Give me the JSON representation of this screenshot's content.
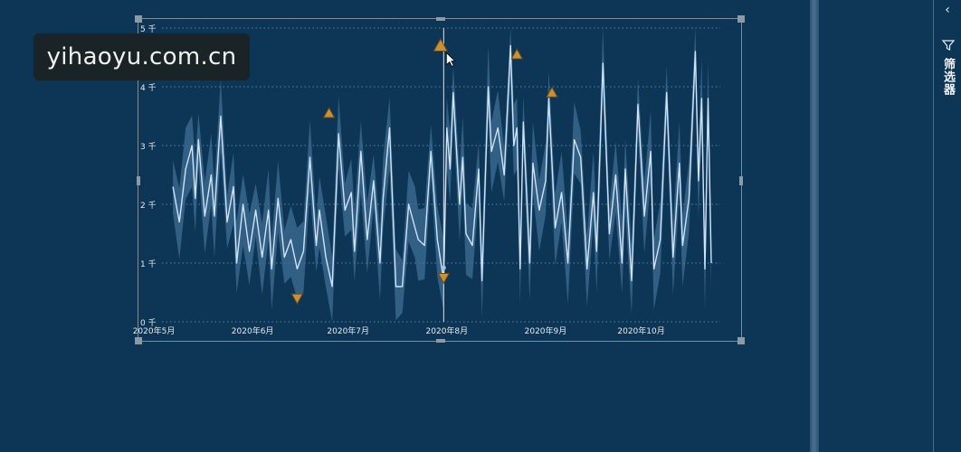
{
  "watermark": {
    "text": "yihaoyu.com.cn"
  },
  "filter_pane": {
    "label": "筛选器",
    "collapse_icon": "chevron-left-icon",
    "filter_icon": "funnel-icon"
  },
  "colors": {
    "background": "#0d3656",
    "line": "#cfe3f7",
    "band": "#3f6e94",
    "anomaly": "#c99035",
    "grid": "#5e7f9c",
    "axis_text": "#e3ebf2"
  },
  "chart_data": {
    "type": "line",
    "title": "",
    "xlabel": "",
    "ylabel": "",
    "ylim": [
      0,
      5000
    ],
    "y_ticks": [
      {
        "value": 0,
        "label": "0 千"
      },
      {
        "value": 1000,
        "label": "1 千"
      },
      {
        "value": 2000,
        "label": "2 千"
      },
      {
        "value": 3000,
        "label": "3 千"
      },
      {
        "value": 4000,
        "label": "4 千"
      },
      {
        "value": 5000,
        "label": "5 千"
      }
    ],
    "x_range": [
      "2020-05-01",
      "2020-10-23"
    ],
    "x_ticks": [
      {
        "date": "2020-05-01",
        "label": "2020年5月"
      },
      {
        "date": "2020-06-01",
        "label": "2020年6月"
      },
      {
        "date": "2020-07-01",
        "label": "2020年7月"
      },
      {
        "date": "2020-08-01",
        "label": "2020年8月"
      },
      {
        "date": "2020-09-01",
        "label": "2020年9月"
      },
      {
        "date": "2020-10-01",
        "label": "2020年10月"
      }
    ],
    "grid": true,
    "series": [
      {
        "values": [
          [
            "2020-05-07",
            2300
          ],
          [
            "2020-05-09",
            1700
          ],
          [
            "2020-05-11",
            2600
          ],
          [
            "2020-05-13",
            3000
          ],
          [
            "2020-05-14",
            2100
          ],
          [
            "2020-05-15",
            3100
          ],
          [
            "2020-05-17",
            1800
          ],
          [
            "2020-05-19",
            2500
          ],
          [
            "2020-05-20",
            1800
          ],
          [
            "2020-05-22",
            3500
          ],
          [
            "2020-05-24",
            1700
          ],
          [
            "2020-05-26",
            2300
          ],
          [
            "2020-05-27",
            1000
          ],
          [
            "2020-05-29",
            2000
          ],
          [
            "2020-05-31",
            1200
          ],
          [
            "2020-06-02",
            1900
          ],
          [
            "2020-06-04",
            1100
          ],
          [
            "2020-06-06",
            1900
          ],
          [
            "2020-06-07",
            900
          ],
          [
            "2020-06-09",
            2100
          ],
          [
            "2020-06-11",
            1100
          ],
          [
            "2020-06-13",
            1400
          ],
          [
            "2020-06-15",
            900
          ],
          [
            "2020-06-17",
            1200
          ],
          [
            "2020-06-19",
            2800
          ],
          [
            "2020-06-21",
            1300
          ],
          [
            "2020-06-22",
            1900
          ],
          [
            "2020-06-24",
            1100
          ],
          [
            "2020-06-26",
            600
          ],
          [
            "2020-06-28",
            3200
          ],
          [
            "2020-06-30",
            1900
          ],
          [
            "2020-07-02",
            2200
          ],
          [
            "2020-07-03",
            1200
          ],
          [
            "2020-07-05",
            2900
          ],
          [
            "2020-07-07",
            1400
          ],
          [
            "2020-07-09",
            2400
          ],
          [
            "2020-07-11",
            1000
          ],
          [
            "2020-07-12",
            2100
          ],
          [
            "2020-07-14",
            3300
          ],
          [
            "2020-07-16",
            600
          ],
          [
            "2020-07-18",
            600
          ],
          [
            "2020-07-20",
            2000
          ],
          [
            "2020-07-22",
            1600
          ],
          [
            "2020-07-23",
            1400
          ],
          [
            "2020-07-25",
            1300
          ],
          [
            "2020-07-27",
            2900
          ],
          [
            "2020-07-29",
            1400
          ],
          [
            "2020-07-31",
            700
          ],
          [
            "2020-08-01",
            3300
          ],
          [
            "2020-08-02",
            2600
          ],
          [
            "2020-08-03",
            3900
          ],
          [
            "2020-08-05",
            2000
          ],
          [
            "2020-08-06",
            2800
          ],
          [
            "2020-08-07",
            1500
          ],
          [
            "2020-08-09",
            1300
          ],
          [
            "2020-08-11",
            2600
          ],
          [
            "2020-08-12",
            700
          ],
          [
            "2020-08-14",
            4000
          ],
          [
            "2020-08-15",
            2900
          ],
          [
            "2020-08-17",
            3300
          ],
          [
            "2020-08-19",
            2500
          ],
          [
            "2020-08-21",
            4700
          ],
          [
            "2020-08-22",
            3000
          ],
          [
            "2020-08-23",
            3300
          ],
          [
            "2020-08-24",
            900
          ],
          [
            "2020-08-25",
            3400
          ],
          [
            "2020-08-27",
            1000
          ],
          [
            "2020-08-28",
            2700
          ],
          [
            "2020-08-30",
            1900
          ],
          [
            "2020-09-01",
            2400
          ],
          [
            "2020-09-02",
            3800
          ],
          [
            "2020-09-04",
            1600
          ],
          [
            "2020-09-06",
            2200
          ],
          [
            "2020-09-08",
            1000
          ],
          [
            "2020-09-10",
            3100
          ],
          [
            "2020-09-12",
            2800
          ],
          [
            "2020-09-14",
            900
          ],
          [
            "2020-09-16",
            2200
          ],
          [
            "2020-09-17",
            1200
          ],
          [
            "2020-09-19",
            4400
          ],
          [
            "2020-09-21",
            1500
          ],
          [
            "2020-09-23",
            2500
          ],
          [
            "2020-09-25",
            1000
          ],
          [
            "2020-09-26",
            2600
          ],
          [
            "2020-09-28",
            700
          ],
          [
            "2020-09-30",
            3700
          ],
          [
            "2020-10-02",
            1800
          ],
          [
            "2020-10-04",
            2900
          ],
          [
            "2020-10-05",
            900
          ],
          [
            "2020-10-07",
            1400
          ],
          [
            "2020-10-09",
            3900
          ],
          [
            "2020-10-11",
            1100
          ],
          [
            "2020-10-13",
            2700
          ],
          [
            "2020-10-14",
            1300
          ],
          [
            "2020-10-16",
            2100
          ],
          [
            "2020-10-18",
            4600
          ],
          [
            "2020-10-19",
            2400
          ],
          [
            "2020-10-20",
            3800
          ],
          [
            "2020-10-21",
            900
          ],
          [
            "2020-10-22",
            3800
          ],
          [
            "2020-10-23",
            1000
          ]
        ],
        "range_band": "expected range shown as shaded band around the line"
      }
    ],
    "anomalies": [
      {
        "date": "2020-06-15",
        "value": 400,
        "direction": "down"
      },
      {
        "date": "2020-06-25",
        "value": 3550,
        "direction": "up"
      },
      {
        "date": "2020-07-30",
        "value": 4700,
        "direction": "up",
        "highlighted": true
      },
      {
        "date": "2020-07-31",
        "value": 750,
        "direction": "down"
      },
      {
        "date": "2020-08-23",
        "value": 4550,
        "direction": "up"
      },
      {
        "date": "2020-09-03",
        "value": 3900,
        "direction": "up"
      }
    ],
    "cursor_line_date": "2020-07-31",
    "cursor_point_value": 920
  }
}
